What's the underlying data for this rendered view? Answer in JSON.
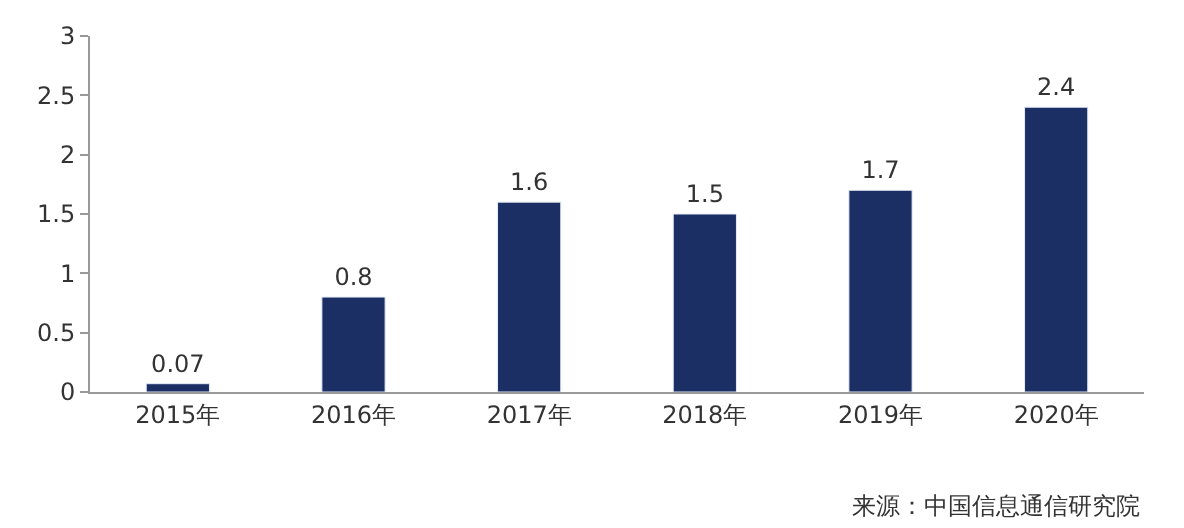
{
  "chart_data": {
    "type": "bar",
    "categories": [
      "2015年",
      "2016年",
      "2017年",
      "2018年",
      "2019年",
      "2020年"
    ],
    "values": [
      0.07,
      0.8,
      1.6,
      1.5,
      1.7,
      2.4
    ],
    "color": "#1b2f64",
    "ylim": [
      0,
      3
    ],
    "yticks": [
      0,
      0.5,
      1,
      1.5,
      2,
      2.5,
      3
    ],
    "data_labels": true,
    "annotations": [
      "来源：中国信息通信研究院"
    ]
  }
}
